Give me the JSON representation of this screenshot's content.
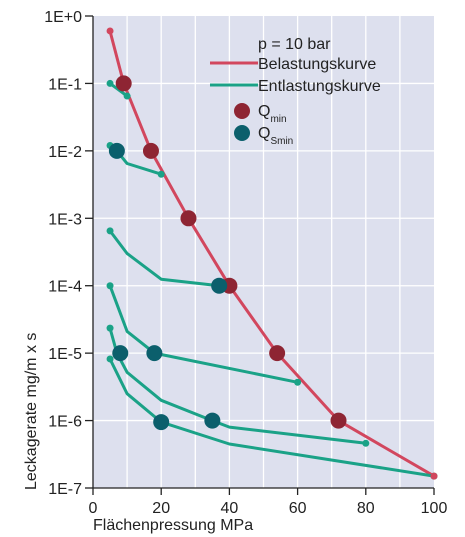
{
  "chart_data": {
    "type": "line",
    "xlabel": "Flächenpressung  MPa",
    "ylabel": "Leckagerate  mg/m x s",
    "xlim": [
      0,
      100
    ],
    "ylim_exp": [
      -7,
      0
    ],
    "yscale": "log",
    "grid": true,
    "x_ticks": [
      "0",
      "20",
      "40",
      "60",
      "80",
      "100"
    ],
    "y_ticks": [
      "1E-7",
      "1E-6",
      "1E-5",
      "1E-4",
      "1E-3",
      "1E-2",
      "1E-1",
      "1E+0"
    ],
    "legend": {
      "placement": "top-right",
      "title": "p = 10 bar",
      "items": [
        {
          "label": "Belastungskurve",
          "kind": "line",
          "color": "#d2475e"
        },
        {
          "label": "Entlastungskurve",
          "kind": "line",
          "color": "#1aa287"
        },
        {
          "label": "Q",
          "sub": "min",
          "kind": "marker",
          "color": "#8e2533"
        },
        {
          "label": "Q",
          "sub": "Smin",
          "kind": "marker",
          "color": "#0b5f6c"
        }
      ]
    },
    "series": [
      {
        "name": "Belastungskurve",
        "color": "#d2475e",
        "points": [
          [
            5,
            0.6
          ],
          [
            9,
            0.1
          ],
          [
            17,
            0.01
          ],
          [
            28,
            0.001
          ],
          [
            40,
            0.0001
          ],
          [
            54,
            1e-05
          ],
          [
            72,
            1e-06
          ],
          [
            100,
            1.5e-07
          ]
        ]
      },
      {
        "color": "#1aa287",
        "points": [
          [
            5,
            0.1
          ],
          [
            10,
            0.065
          ]
        ]
      },
      {
        "color": "#1aa287",
        "points": [
          [
            5,
            0.012
          ],
          [
            7,
            0.01
          ],
          [
            10,
            0.0065
          ],
          [
            20,
            0.0045
          ]
        ]
      },
      {
        "color": "#1aa287",
        "points": [
          [
            5,
            0.00065
          ],
          [
            10,
            0.0003
          ],
          [
            20,
            0.000125
          ],
          [
            37,
            0.0001
          ],
          [
            40,
            0.0001
          ]
        ]
      },
      {
        "color": "#1aa287",
        "points": [
          [
            5,
            0.0001
          ],
          [
            10,
            2.1e-05
          ],
          [
            18,
            1e-05
          ],
          [
            60,
            3.7e-06
          ]
        ]
      },
      {
        "color": "#1aa287",
        "points": [
          [
            5,
            2.35e-05
          ],
          [
            7,
            1e-05
          ],
          [
            10,
            5.2e-06
          ],
          [
            20,
            2e-06
          ],
          [
            35,
            1e-06
          ],
          [
            40,
            8e-07
          ],
          [
            80,
            4.6e-07
          ]
        ]
      },
      {
        "color": "#1aa287",
        "points": [
          [
            5,
            8.2e-06
          ],
          [
            10,
            2.5e-06
          ],
          [
            20,
            9.5e-07
          ],
          [
            40,
            4.5e-07
          ],
          [
            100,
            1.5e-07
          ]
        ]
      }
    ],
    "small_points": {
      "red": [
        [
          5,
          0.6
        ],
        [
          100,
          1.5e-07
        ]
      ],
      "green": [
        [
          5,
          0.1
        ],
        [
          10,
          0.065
        ],
        [
          5,
          0.012
        ],
        [
          20,
          0.0045
        ],
        [
          5,
          0.00065
        ],
        [
          5,
          0.0001
        ],
        [
          5,
          2.35e-05
        ],
        [
          5,
          8.2e-06
        ],
        [
          60,
          3.7e-06
        ],
        [
          80,
          4.6e-07
        ],
        [
          100,
          1.5e-07
        ]
      ]
    },
    "q_min": [
      [
        9,
        0.1
      ],
      [
        17,
        0.01
      ],
      [
        28,
        0.001
      ],
      [
        40,
        0.0001
      ],
      [
        54,
        1e-05
      ],
      [
        72,
        1e-06
      ]
    ],
    "q_smin": [
      [
        7,
        0.01
      ],
      [
        37,
        0.0001
      ],
      [
        8,
        1e-05
      ],
      [
        18,
        1e-05
      ],
      [
        20,
        9.5e-07
      ],
      [
        35,
        1e-06
      ]
    ],
    "colors": {
      "plot_bg": "#dde0ee",
      "grid": "#ffffff",
      "q_min": "#8e2533",
      "q_smin": "#0b5f6c",
      "loading": "#d2475e",
      "unloading": "#1aa287"
    }
  }
}
